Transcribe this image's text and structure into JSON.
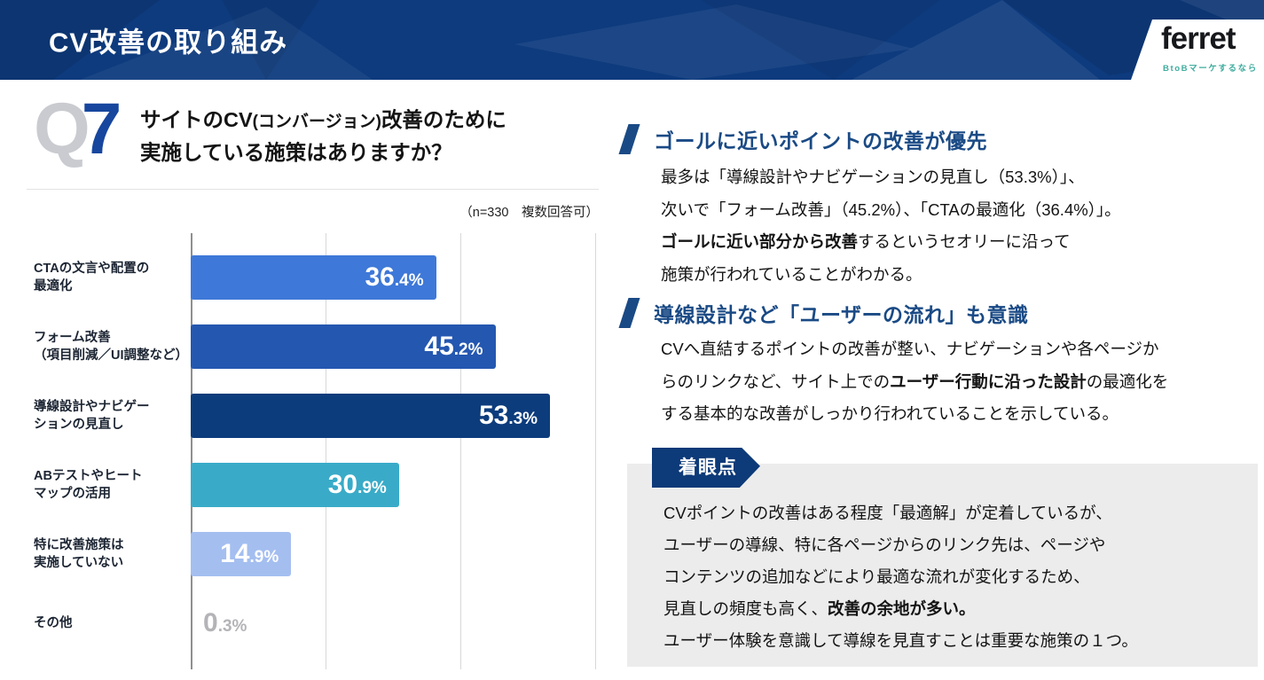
{
  "header": {
    "title": "CV改善の取り組み",
    "bg_color": "#0e3b7e",
    "logo": {
      "name": "ferret",
      "tagline": "BtoBマーケするなら",
      "tagline_color": "#3fad9e",
      "text_color": "#17181c"
    }
  },
  "question": {
    "q_letter": "Q",
    "q_number": "7",
    "q_number_color": "#17469e",
    "title_lines": [
      [
        [
          "サイトのCV",
          ""
        ],
        [
          "(コンバージョン)",
          "small"
        ],
        [
          "改善のために",
          ""
        ]
      ],
      [
        [
          "実施している施策はありますか？",
          ""
        ]
      ]
    ],
    "note": "（n=330　複数回答可）"
  },
  "chart_data": {
    "type": "bar",
    "orientation": "horizontal",
    "title": "",
    "xlabel": "",
    "ylabel": "",
    "note": "（n=330　複数回答可）",
    "xlim": [
      0,
      60
    ],
    "gridlines_percent": [
      0,
      20,
      40,
      60
    ],
    "grid": true,
    "categories": [
      "CTAの文言や配置の最適化",
      "フォーム改善（項目削減／UI調整など）",
      "導線設計やナビゲーションの見直し",
      "ABテストやヒートマップの活用",
      "特に改善施策は実施していない",
      "その他"
    ],
    "values": [
      36.4,
      45.2,
      53.3,
      30.9,
      14.9,
      0.3
    ],
    "bar_colors": [
      "#3e78d8",
      "#2457b0",
      "#0c3c7c",
      "#39abc8",
      "#a4bef0",
      "#b4b4b8"
    ],
    "muted_value_color": "#b4b4b8",
    "rows": [
      {
        "label_lines": [
          "CTAの文言や配置の",
          "最適化"
        ],
        "value": 36.4,
        "color": "#3e78d8",
        "value_inside": true
      },
      {
        "label_lines": [
          "フォーム改善",
          "（項目削減／UI調整など）"
        ],
        "value": 45.2,
        "color": "#2457b0",
        "value_inside": true
      },
      {
        "label_lines": [
          "導線設計やナビゲー",
          "ションの見直し"
        ],
        "value": 53.3,
        "color": "#0c3c7c",
        "value_inside": true
      },
      {
        "label_lines": [
          "ABテストやヒート",
          "マップの活用"
        ],
        "value": 30.9,
        "color": "#39abc8",
        "value_inside": true
      },
      {
        "label_lines": [
          "特に改善施策は",
          "実施していない"
        ],
        "value": 14.9,
        "color": "#a4bef0",
        "value_inside": true
      },
      {
        "label_lines": [
          "その他"
        ],
        "value": 0.3,
        "color": "#c0c0c4",
        "value_inside": false
      }
    ]
  },
  "insights": [
    {
      "heading": "ゴールに近いポイントの改善が優先",
      "lines": [
        [
          [
            "最多は「導線設計やナビゲーションの見直し（53.3%）」、",
            ""
          ]
        ],
        [
          [
            "次いで「フォーム改善」（45.2%）、「CTAの最適化（36.4%）」。",
            ""
          ]
        ],
        [
          [
            "ゴールに近い部分から改善",
            "b"
          ],
          [
            "するというセオリーに沿って",
            ""
          ]
        ],
        [
          [
            "施策が行われていることがわかる。",
            ""
          ]
        ]
      ]
    },
    {
      "heading": "導線設計など「ユーザーの流れ」も意識",
      "lines": [
        [
          [
            "CVへ直結するポイントの改善が整い、ナビゲーションや各ページか",
            ""
          ]
        ],
        [
          [
            "らのリンクなど、サイト上での",
            ""
          ],
          [
            "ユーザー行動に沿った設計",
            "b"
          ],
          [
            "の最適化を",
            ""
          ]
        ],
        [
          [
            "する基本的な改善がしっかり行われていることを示している。",
            ""
          ]
        ]
      ]
    }
  ],
  "viewpoint": {
    "badge": "着眼点",
    "badge_color": "#0d3a78",
    "box_color": "#ececec",
    "lines": [
      [
        [
          "CVポイントの改善はある程度「最適解」が定着しているが、",
          ""
        ]
      ],
      [
        [
          "ユーザーの導線、特に各ページからのリンク先は、ページや",
          ""
        ]
      ],
      [
        [
          "コンテンツの追加などにより最適な流れが変化するため、",
          ""
        ]
      ],
      [
        [
          "見直しの頻度も高く、",
          ""
        ],
        [
          "改善の余地が多い。",
          "b"
        ]
      ],
      [
        [
          "ユーザー体験を意識して導線を見直すことは重要な施策の１つ。",
          ""
        ]
      ]
    ]
  }
}
